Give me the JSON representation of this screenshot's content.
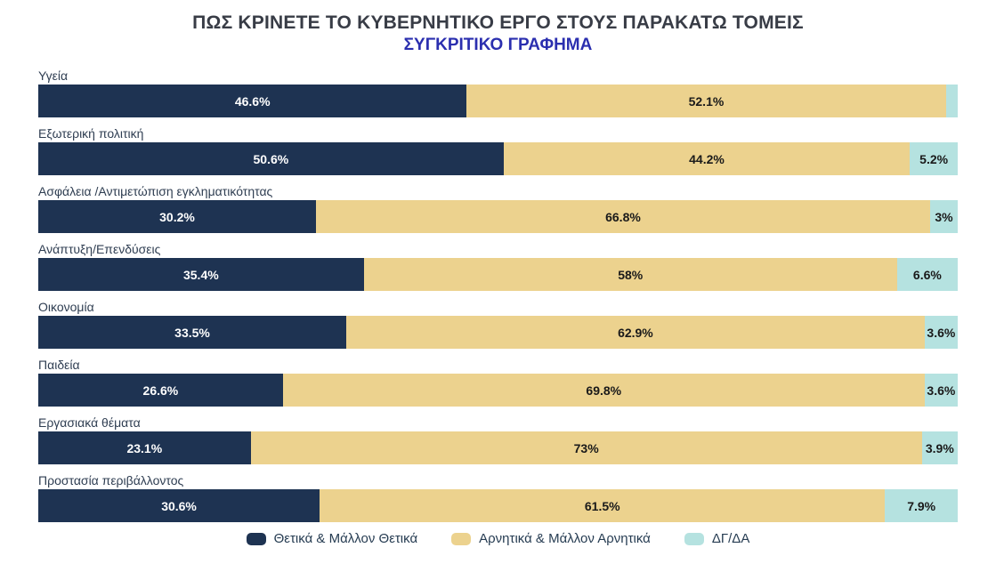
{
  "chart_data": {
    "type": "bar",
    "stacked": true,
    "orientation": "horizontal",
    "title": "ΠΩΣ ΚΡΙΝΕΤΕ ΤΟ ΚΥΒΕΡΝΗΤΙΚΟ ΕΡΓΟ ΣΤΟΥΣ ΠΑΡΑΚΑΤΩ ΤΟΜΕΙΣ",
    "subtitle": "ΣΥΓΚΡΙΤΙΚΟ ΓΡΑΦΗΜΑ",
    "xlim": [
      0,
      100
    ],
    "legend_position": "bottom",
    "grid": false,
    "categories": [
      "Υγεία",
      "Εξωτερική πολιτική",
      "Ασφάλεια /Αντιμετώπιση εγκληματικότητας",
      "Ανάπτυξη/Επενδύσεις",
      "Οικονομία",
      "Παιδεία",
      "Εργασιακά θέματα",
      "Προστασία περιβάλλοντος"
    ],
    "series": [
      {
        "name": "Θετικά & Μάλλον Θετικά",
        "slug": "positive",
        "color": "#1e3352",
        "values": [
          46.6,
          50.6,
          30.2,
          35.4,
          33.5,
          26.6,
          23.1,
          30.6
        ],
        "labels": [
          "46.6%",
          "50.6%",
          "30.2%",
          "35.4%",
          "33.5%",
          "26.6%",
          "23.1%",
          "30.6%"
        ]
      },
      {
        "name": "Αρνητικά & Μάλλον Αρνητικά",
        "slug": "negative",
        "color": "#ecd28e",
        "values": [
          52.1,
          44.2,
          66.8,
          58,
          62.9,
          69.8,
          73,
          61.5
        ],
        "labels": [
          "52.1%",
          "44.2%",
          "66.8%",
          "58%",
          "62.9%",
          "69.8%",
          "73%",
          "61.5%"
        ]
      },
      {
        "name": "ΔΓ/ΔΑ",
        "slug": "dk-da",
        "color": "#b5e2e0",
        "values": [
          1.3,
          5.2,
          3,
          6.6,
          3.6,
          3.6,
          3.9,
          7.9
        ],
        "labels": [
          "",
          "5.2%",
          "3%",
          "6.6%",
          "3.6%",
          "3.6%",
          "3.9%",
          "7.9%"
        ]
      }
    ]
  }
}
